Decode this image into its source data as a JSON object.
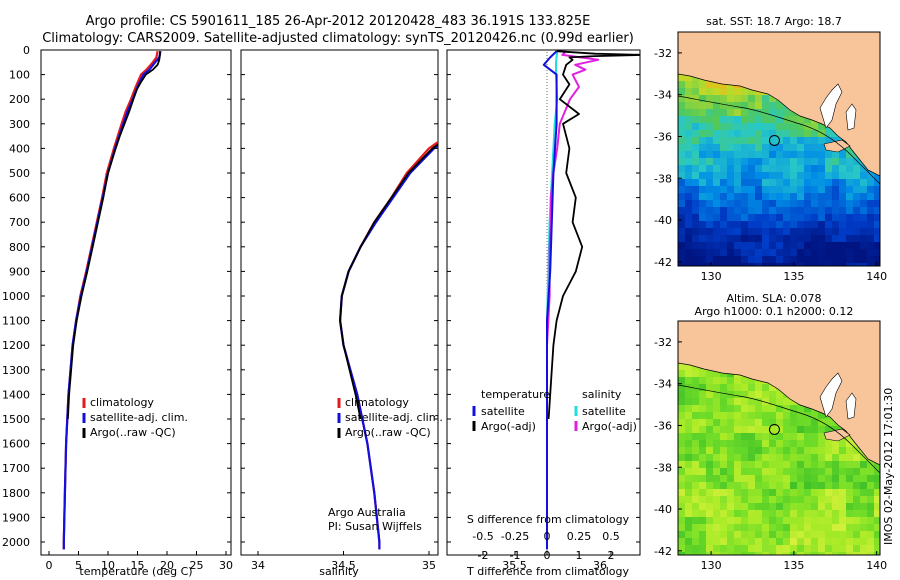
{
  "header": {
    "line1": "Argo profile: CS 5901611_185 26-Apr-2012 20120428_483 36.191S 133.825E",
    "line2": "Climatology: CARS2009. Satellite-adjusted climatology: synTS_20120426.nc (0.99d earlier)"
  },
  "colors": {
    "climatology": "#e41a1c",
    "satellite": "#1010e0",
    "argo": "#000000",
    "salinity_satellite": "#22dddd",
    "salinity_argo": "#e020e0"
  },
  "chart_data": [
    {
      "type": "line",
      "id": "temperature_profile",
      "xlabel": "temperature (deg C)",
      "xlim": [
        -2,
        31
      ],
      "xticks": [
        "0",
        "5",
        "10",
        "15",
        "20",
        "25",
        "30"
      ],
      "ylim": [
        0,
        2050
      ],
      "yticks": [
        "0",
        "100",
        "200",
        "300",
        "400",
        "500",
        "600",
        "700",
        "800",
        "900",
        "1000",
        "1100",
        "1200",
        "1300",
        "1400",
        "1500",
        "1600",
        "1700",
        "1800",
        "1900",
        "2000"
      ],
      "legend": [
        "climatology",
        "satellite-adj. clim.",
        "Argo(..raw -QC)"
      ],
      "series": [
        {
          "name": "climatology",
          "depth": [
            5,
            30,
            50,
            80,
            100,
            150,
            200,
            250,
            300,
            400,
            500,
            600,
            700,
            800,
            900,
            1000,
            1100,
            1200,
            1400,
            1600,
            1800,
            2000,
            2030
          ],
          "values": [
            18.4,
            18.2,
            17.6,
            16.5,
            15.6,
            14.7,
            13.9,
            13.0,
            12.3,
            11.0,
            9.8,
            9.0,
            8.1,
            7.2,
            6.3,
            5.3,
            4.6,
            4.0,
            3.3,
            2.9,
            2.7,
            2.5,
            2.5
          ]
        },
        {
          "name": "satellite-adj. clim.",
          "depth": [
            5,
            30,
            50,
            80,
            100,
            150,
            200,
            250,
            300,
            400,
            500,
            600,
            700,
            800,
            900,
            1000,
            1100,
            1200,
            1400,
            1600,
            1800,
            2000,
            2030
          ],
          "values": [
            18.9,
            18.7,
            18.0,
            17.0,
            16.0,
            15.0,
            14.2,
            13.3,
            12.6,
            11.2,
            10.0,
            9.1,
            8.2,
            7.3,
            6.4,
            5.4,
            4.6,
            4.0,
            3.3,
            2.9,
            2.7,
            2.5,
            2.5
          ]
        },
        {
          "name": "Argo(..raw -QC)",
          "depth": [
            5,
            20,
            40,
            60,
            80,
            100,
            130,
            160,
            200,
            250,
            300,
            350,
            400,
            500,
            600,
            700,
            800,
            900,
            1000,
            1100,
            1200,
            1400,
            1500
          ],
          "values": [
            18.8,
            18.8,
            18.7,
            18.4,
            17.6,
            16.4,
            15.6,
            14.9,
            14.3,
            13.6,
            12.8,
            12.0,
            11.3,
            10.0,
            9.2,
            8.3,
            7.4,
            6.5,
            5.5,
            4.7,
            4.1,
            3.4,
            3.2
          ]
        }
      ]
    },
    {
      "type": "line",
      "id": "salinity_profile",
      "xlabel": "salinity",
      "xlim": [
        33.6,
        36.1
      ],
      "xticks": [
        "34",
        "34.5",
        "35",
        "35.5",
        "36"
      ],
      "ylim": [
        0,
        2050
      ],
      "legend": [
        "climatology",
        "satellite-adj. clim.",
        "Argo(..raw -QC)"
      ],
      "annotation": [
        "Argo Australia",
        "PI: Susan Wijffels"
      ],
      "series": [
        {
          "name": "climatology",
          "depth": [
            5,
            50,
            100,
            150,
            200,
            250,
            300,
            400,
            500,
            600,
            700,
            800,
            900,
            1000,
            1100,
            1200,
            1300,
            1400,
            1600,
            1800,
            2000,
            2030
          ],
          "values": [
            35.6,
            35.57,
            35.48,
            35.42,
            35.34,
            35.28,
            35.2,
            35.0,
            34.87,
            34.78,
            34.68,
            34.6,
            34.53,
            34.49,
            34.48,
            34.5,
            34.54,
            34.58,
            34.64,
            34.68,
            34.71,
            34.71
          ]
        },
        {
          "name": "satellite-adj. clim.",
          "depth": [
            5,
            50,
            100,
            150,
            200,
            250,
            300,
            400,
            500,
            600,
            700,
            800,
            900,
            1000,
            1100,
            1200,
            1300,
            1400,
            1600,
            1800,
            2000,
            2030
          ],
          "values": [
            35.68,
            35.64,
            35.55,
            35.5,
            35.42,
            35.33,
            35.24,
            35.03,
            34.89,
            34.79,
            34.69,
            34.6,
            34.53,
            34.49,
            34.48,
            34.5,
            34.54,
            34.58,
            34.64,
            34.68,
            34.71,
            34.71
          ]
        },
        {
          "name": "Argo(..raw -QC)",
          "depth": [
            5,
            20,
            40,
            60,
            80,
            100,
            140,
            180,
            220,
            260,
            300,
            350,
            400,
            500,
            600,
            700,
            800,
            900,
            1000,
            1100,
            1200,
            1400,
            1500
          ],
          "values": [
            35.77,
            35.77,
            35.76,
            35.72,
            35.65,
            35.55,
            35.52,
            35.47,
            35.42,
            35.33,
            35.24,
            35.12,
            35.02,
            34.88,
            34.78,
            34.68,
            34.6,
            34.53,
            34.49,
            34.48,
            34.5,
            34.57,
            34.6
          ]
        }
      ]
    },
    {
      "type": "line",
      "id": "difference_profile",
      "xlabel_bottom": "T difference from climatology",
      "xlabel_top": "S difference from climatology",
      "xlim_T": [
        -2.2,
        3.4
      ],
      "xticks_T": [
        "-2",
        "-1",
        "0",
        "1",
        "2"
      ],
      "xticks_S": [
        "-0.5",
        "-0.25",
        "0",
        "0.25",
        "0.5"
      ],
      "ylim": [
        0,
        2050
      ],
      "legend_temperature": [
        "temperature",
        "satellite",
        "Argo(-adj)"
      ],
      "legend_salinity": [
        "salinity",
        "satellite",
        "Argo(-adj)"
      ],
      "series": [
        {
          "name": "temperature satellite",
          "depth": [
            5,
            30,
            60,
            100,
            200,
            300,
            500,
            700,
            900,
            1100,
            1300,
            1500,
            1700,
            1900,
            2030
          ],
          "values": [
            0.3,
            0.1,
            -0.1,
            0.3,
            0.3,
            0.3,
            0.2,
            0.15,
            0.1,
            0.0,
            0.0,
            0.0,
            0.0,
            0.0,
            0.0
          ]
        },
        {
          "name": "temperature Argo(-adj)",
          "depth": [
            5,
            15,
            20,
            25,
            30,
            40,
            60,
            100,
            140,
            200,
            260,
            300,
            400,
            500,
            600,
            700,
            800,
            900,
            1000,
            1100,
            1200,
            1400,
            1500
          ],
          "values": [
            0.3,
            1.5,
            3.0,
            1.5,
            0.7,
            0.8,
            0.6,
            0.5,
            0.7,
            0.4,
            1.0,
            0.5,
            0.7,
            0.6,
            0.9,
            0.8,
            1.1,
            0.9,
            0.5,
            0.3,
            0.2,
            0.1,
            0.05
          ]
        },
        {
          "name": "salinity satellite",
          "depth": [
            5,
            50,
            100,
            200,
            300,
            500,
            700,
            900,
            1100,
            1300,
            1500,
            1700,
            1900,
            2030
          ],
          "values": [
            0.08,
            0.07,
            0.07,
            0.08,
            0.06,
            0.04,
            0.02,
            0.01,
            0.0,
            0.0,
            0.0,
            0.0,
            0.0,
            0.0
          ]
        },
        {
          "name": "salinity Argo(-adj)",
          "depth": [
            5,
            20,
            40,
            60,
            80,
            100,
            150,
            200,
            300,
            400,
            500,
            600,
            700,
            800,
            900,
            1000,
            1100,
            1200,
            1300,
            1400,
            1500
          ],
          "values": [
            0.15,
            0.12,
            0.4,
            0.22,
            0.3,
            0.2,
            0.25,
            0.18,
            0.1,
            0.08,
            0.05,
            0.03,
            0.03,
            0.02,
            0.02,
            0.02,
            0.01,
            0.0,
            0.0,
            0.0,
            0.0
          ]
        }
      ]
    },
    {
      "type": "heatmap",
      "id": "sst_map",
      "title": "sat. SST: 18.7 Argo: 18.7",
      "xlim": [
        128,
        140.2
      ],
      "ylim": [
        -42.2,
        -31
      ],
      "xticks": [
        "130",
        "135",
        "140"
      ],
      "yticks": [
        "-32",
        "-34",
        "-36",
        "-38",
        "-40",
        "-42"
      ],
      "marker": {
        "lon": 133.825,
        "lat": -36.191
      }
    },
    {
      "type": "heatmap",
      "id": "sla_map",
      "title_line1": "Altim. SLA: 0.078",
      "title_line2": "Argo h1000: 0.1 h2000: 0.12",
      "xlim": [
        128,
        140.2
      ],
      "ylim": [
        -42.2,
        -31
      ],
      "xticks": [
        "130",
        "135",
        "140"
      ],
      "yticks": [
        "-32",
        "-34",
        "-36",
        "-38",
        "-40",
        "-42"
      ],
      "marker": {
        "lon": 133.825,
        "lat": -36.191
      }
    }
  ],
  "footer": {
    "stamp": "IMOS 02-May-2012 17:01:30"
  }
}
